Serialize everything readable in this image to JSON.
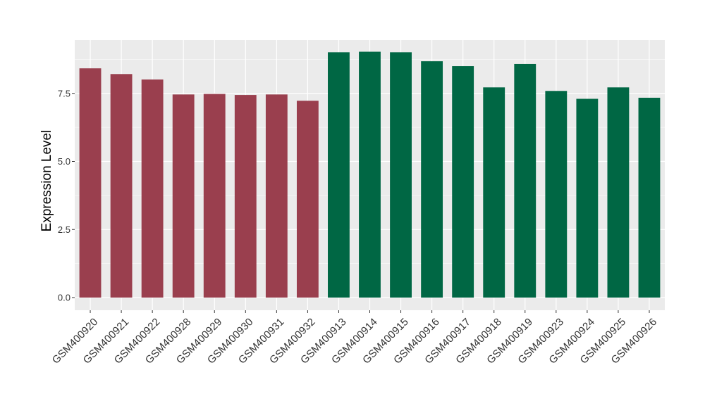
{
  "chart_data": {
    "type": "bar",
    "title": "",
    "xlabel": "",
    "ylabel": "Expression Level",
    "ylim": [
      0,
      9.5
    ],
    "y_ticks": [
      0,
      2.5,
      5,
      7.5
    ],
    "y_tick_labels": [
      "0.0",
      "2.5",
      "5.0",
      "7.5"
    ],
    "grid": true,
    "background_color": "#ebebeb",
    "grid_color": "#ffffff",
    "categories": [
      "GSM400920",
      "GSM400921",
      "GSM400922",
      "GSM400928",
      "GSM400929",
      "GSM400930",
      "GSM400931",
      "GSM400932",
      "GSM400913",
      "GSM400914",
      "GSM400915",
      "GSM400916",
      "GSM400917",
      "GSM400918",
      "GSM400919",
      "GSM400923",
      "GSM400924",
      "GSM400925",
      "GSM400926"
    ],
    "values": [
      8.42,
      8.21,
      8.01,
      7.46,
      7.48,
      7.44,
      7.46,
      7.23,
      9.01,
      9.03,
      9.01,
      8.68,
      8.5,
      7.72,
      8.58,
      7.59,
      7.3,
      7.72,
      7.34
    ],
    "bar_colors": [
      "#9a3f4e",
      "#9a3f4e",
      "#9a3f4e",
      "#9a3f4e",
      "#9a3f4e",
      "#9a3f4e",
      "#9a3f4e",
      "#9a3f4e",
      "#006744",
      "#006744",
      "#006744",
      "#006744",
      "#006744",
      "#006744",
      "#006744",
      "#006744",
      "#006744",
      "#006744",
      "#006744"
    ]
  }
}
